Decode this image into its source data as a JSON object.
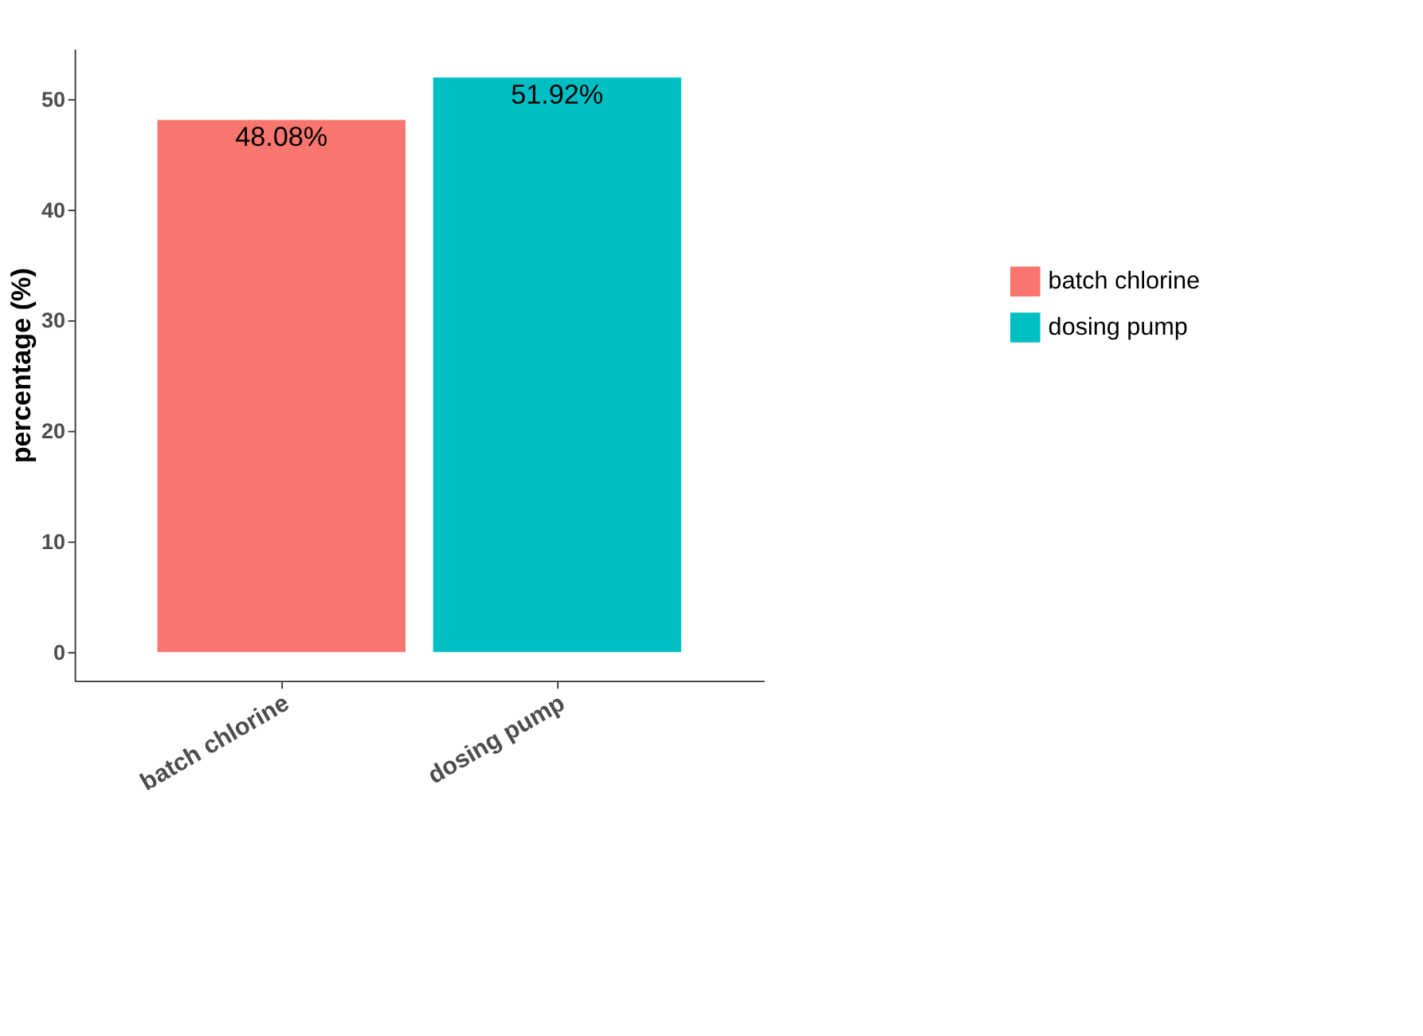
{
  "chart_data": {
    "type": "bar",
    "ylabel": "percentage (%)",
    "categories": [
      "batch chlorine",
      "dosing pump"
    ],
    "series": [
      {
        "name": "batch chlorine",
        "color": "#f8766d",
        "values": [
          48.08,
          null
        ],
        "value_labels": [
          "48.08%",
          null
        ]
      },
      {
        "name": "dosing pump",
        "color": "#00bfc4",
        "values": [
          null,
          51.92
        ],
        "value_labels": [
          null,
          "51.92%"
        ]
      }
    ],
    "ylim": [
      -2.6,
      54.5
    ],
    "yticks": [
      0,
      10,
      20,
      30,
      40,
      50
    ],
    "grid": false,
    "legend": "right"
  }
}
